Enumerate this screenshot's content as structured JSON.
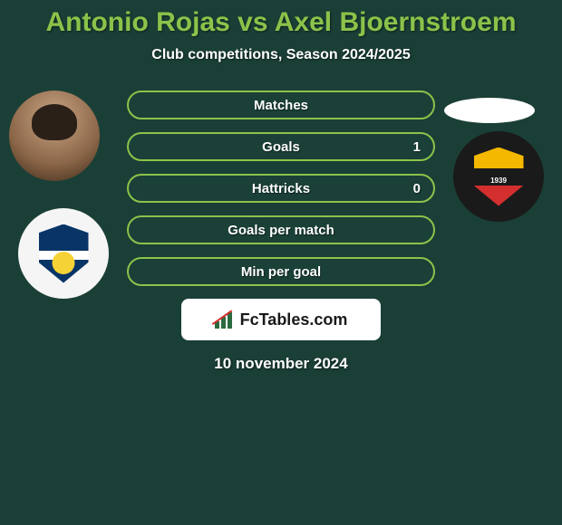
{
  "title": "Antonio Rojas vs Axel Bjoernstroem",
  "subtitle": "Club competitions, Season 2024/2025",
  "stats": [
    {
      "label": "Matches",
      "value_right": ""
    },
    {
      "label": "Goals",
      "value_right": "1"
    },
    {
      "label": "Hattricks",
      "value_right": "0"
    },
    {
      "label": "Goals per match",
      "value_right": ""
    },
    {
      "label": "Min per goal",
      "value_right": ""
    }
  ],
  "brand": "FcTables.com",
  "date": "10 november 2024",
  "badge_right_year": "1939",
  "colors": {
    "background": "#1a3f36",
    "accent": "#8bc34a",
    "text": "#ffffff",
    "pill_bg": "#1a4038",
    "brand_bg": "#ffffff",
    "brand_text": "#1a1a1a"
  }
}
